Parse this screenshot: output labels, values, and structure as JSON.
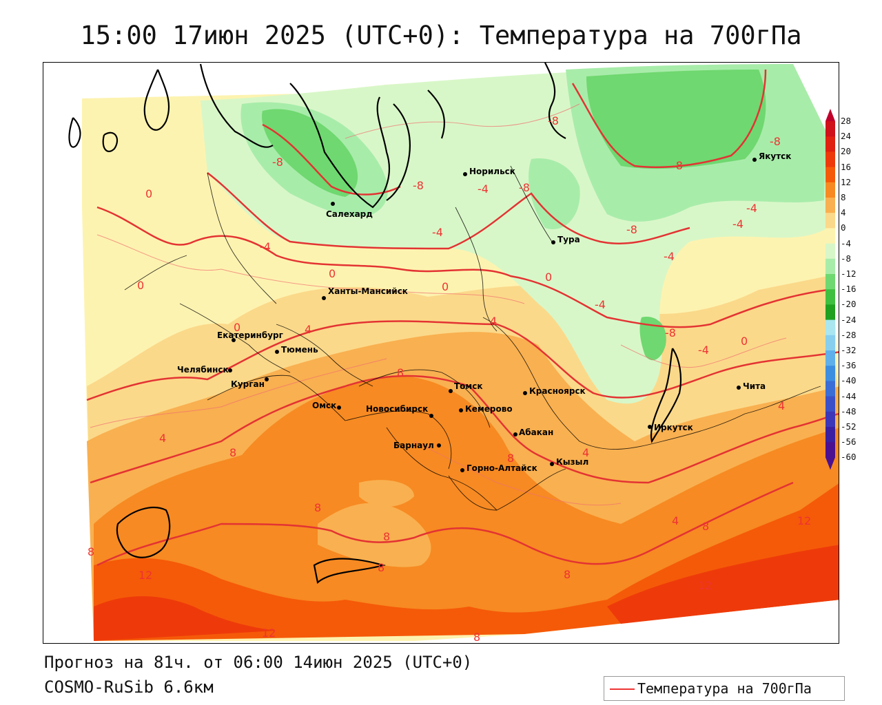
{
  "title": "15:00 17июн 2025 (UTC+0): Температура на 700гПа",
  "footer": {
    "forecast": "Прогноз на 81ч. от 06:00 14июн 2025 (UTC+0)",
    "model": "COSMO-RuSib 6.6км"
  },
  "legend": {
    "label": "Температура на 700гПа",
    "line_color": "#e33333"
  },
  "colorbar": {
    "ticks": [
      "28",
      "24",
      "20",
      "16",
      "12",
      "8",
      "4",
      "0",
      "-4",
      "-8",
      "-12",
      "-16",
      "-20",
      "-24",
      "-28",
      "-32",
      "-36",
      "-40",
      "-44",
      "-48",
      "-52",
      "-56",
      "-60"
    ],
    "colors": [
      "#c0002a",
      "#d0101a",
      "#e02010",
      "#ee3a0a",
      "#f55a08",
      "#f78a22",
      "#f9b050",
      "#fbd98a",
      "#fdf3b0",
      "#d8f7c8",
      "#a8ecaa",
      "#6fd870",
      "#3fbf3f",
      "#1fa01f",
      "#a9e6f0",
      "#88cfee",
      "#5fb0ea",
      "#3e8ee0",
      "#3a6dd6",
      "#3b50c8",
      "#3c37b8",
      "#3a20a0",
      "#4b1090"
    ]
  },
  "cities": [
    {
      "name": "Салехард"
    },
    {
      "name": "Норильск"
    },
    {
      "name": "Якутск"
    },
    {
      "name": "Тура"
    },
    {
      "name": "Ханты-Мансийск"
    },
    {
      "name": "Екатеринбург"
    },
    {
      "name": "Тюмень"
    },
    {
      "name": "Челябинск"
    },
    {
      "name": "Курган"
    },
    {
      "name": "Омск"
    },
    {
      "name": "Новосибирск"
    },
    {
      "name": "Томск"
    },
    {
      "name": "Кемерово"
    },
    {
      "name": "Красноярск"
    },
    {
      "name": "Барнаул"
    },
    {
      "name": "Абакан"
    },
    {
      "name": "Горно-Алтайск"
    },
    {
      "name": "Кызыл"
    },
    {
      "name": "Иркутск"
    },
    {
      "name": "Чита"
    }
  ],
  "contour_labels": [
    "-8",
    "-8",
    "-8",
    "-8",
    "-8",
    "-8",
    "-8",
    "-8",
    "-4",
    "-4",
    "-4",
    "-4",
    "-4",
    "-4",
    "-4",
    "-4",
    "0",
    "0",
    "0",
    "0",
    "0",
    "0",
    "0",
    "4",
    "4",
    "4",
    "4",
    "4",
    "4",
    "8",
    "8",
    "8",
    "8",
    "8",
    "8",
    "8",
    "8",
    "8",
    "8",
    "12",
    "12",
    "12",
    "12"
  ]
}
